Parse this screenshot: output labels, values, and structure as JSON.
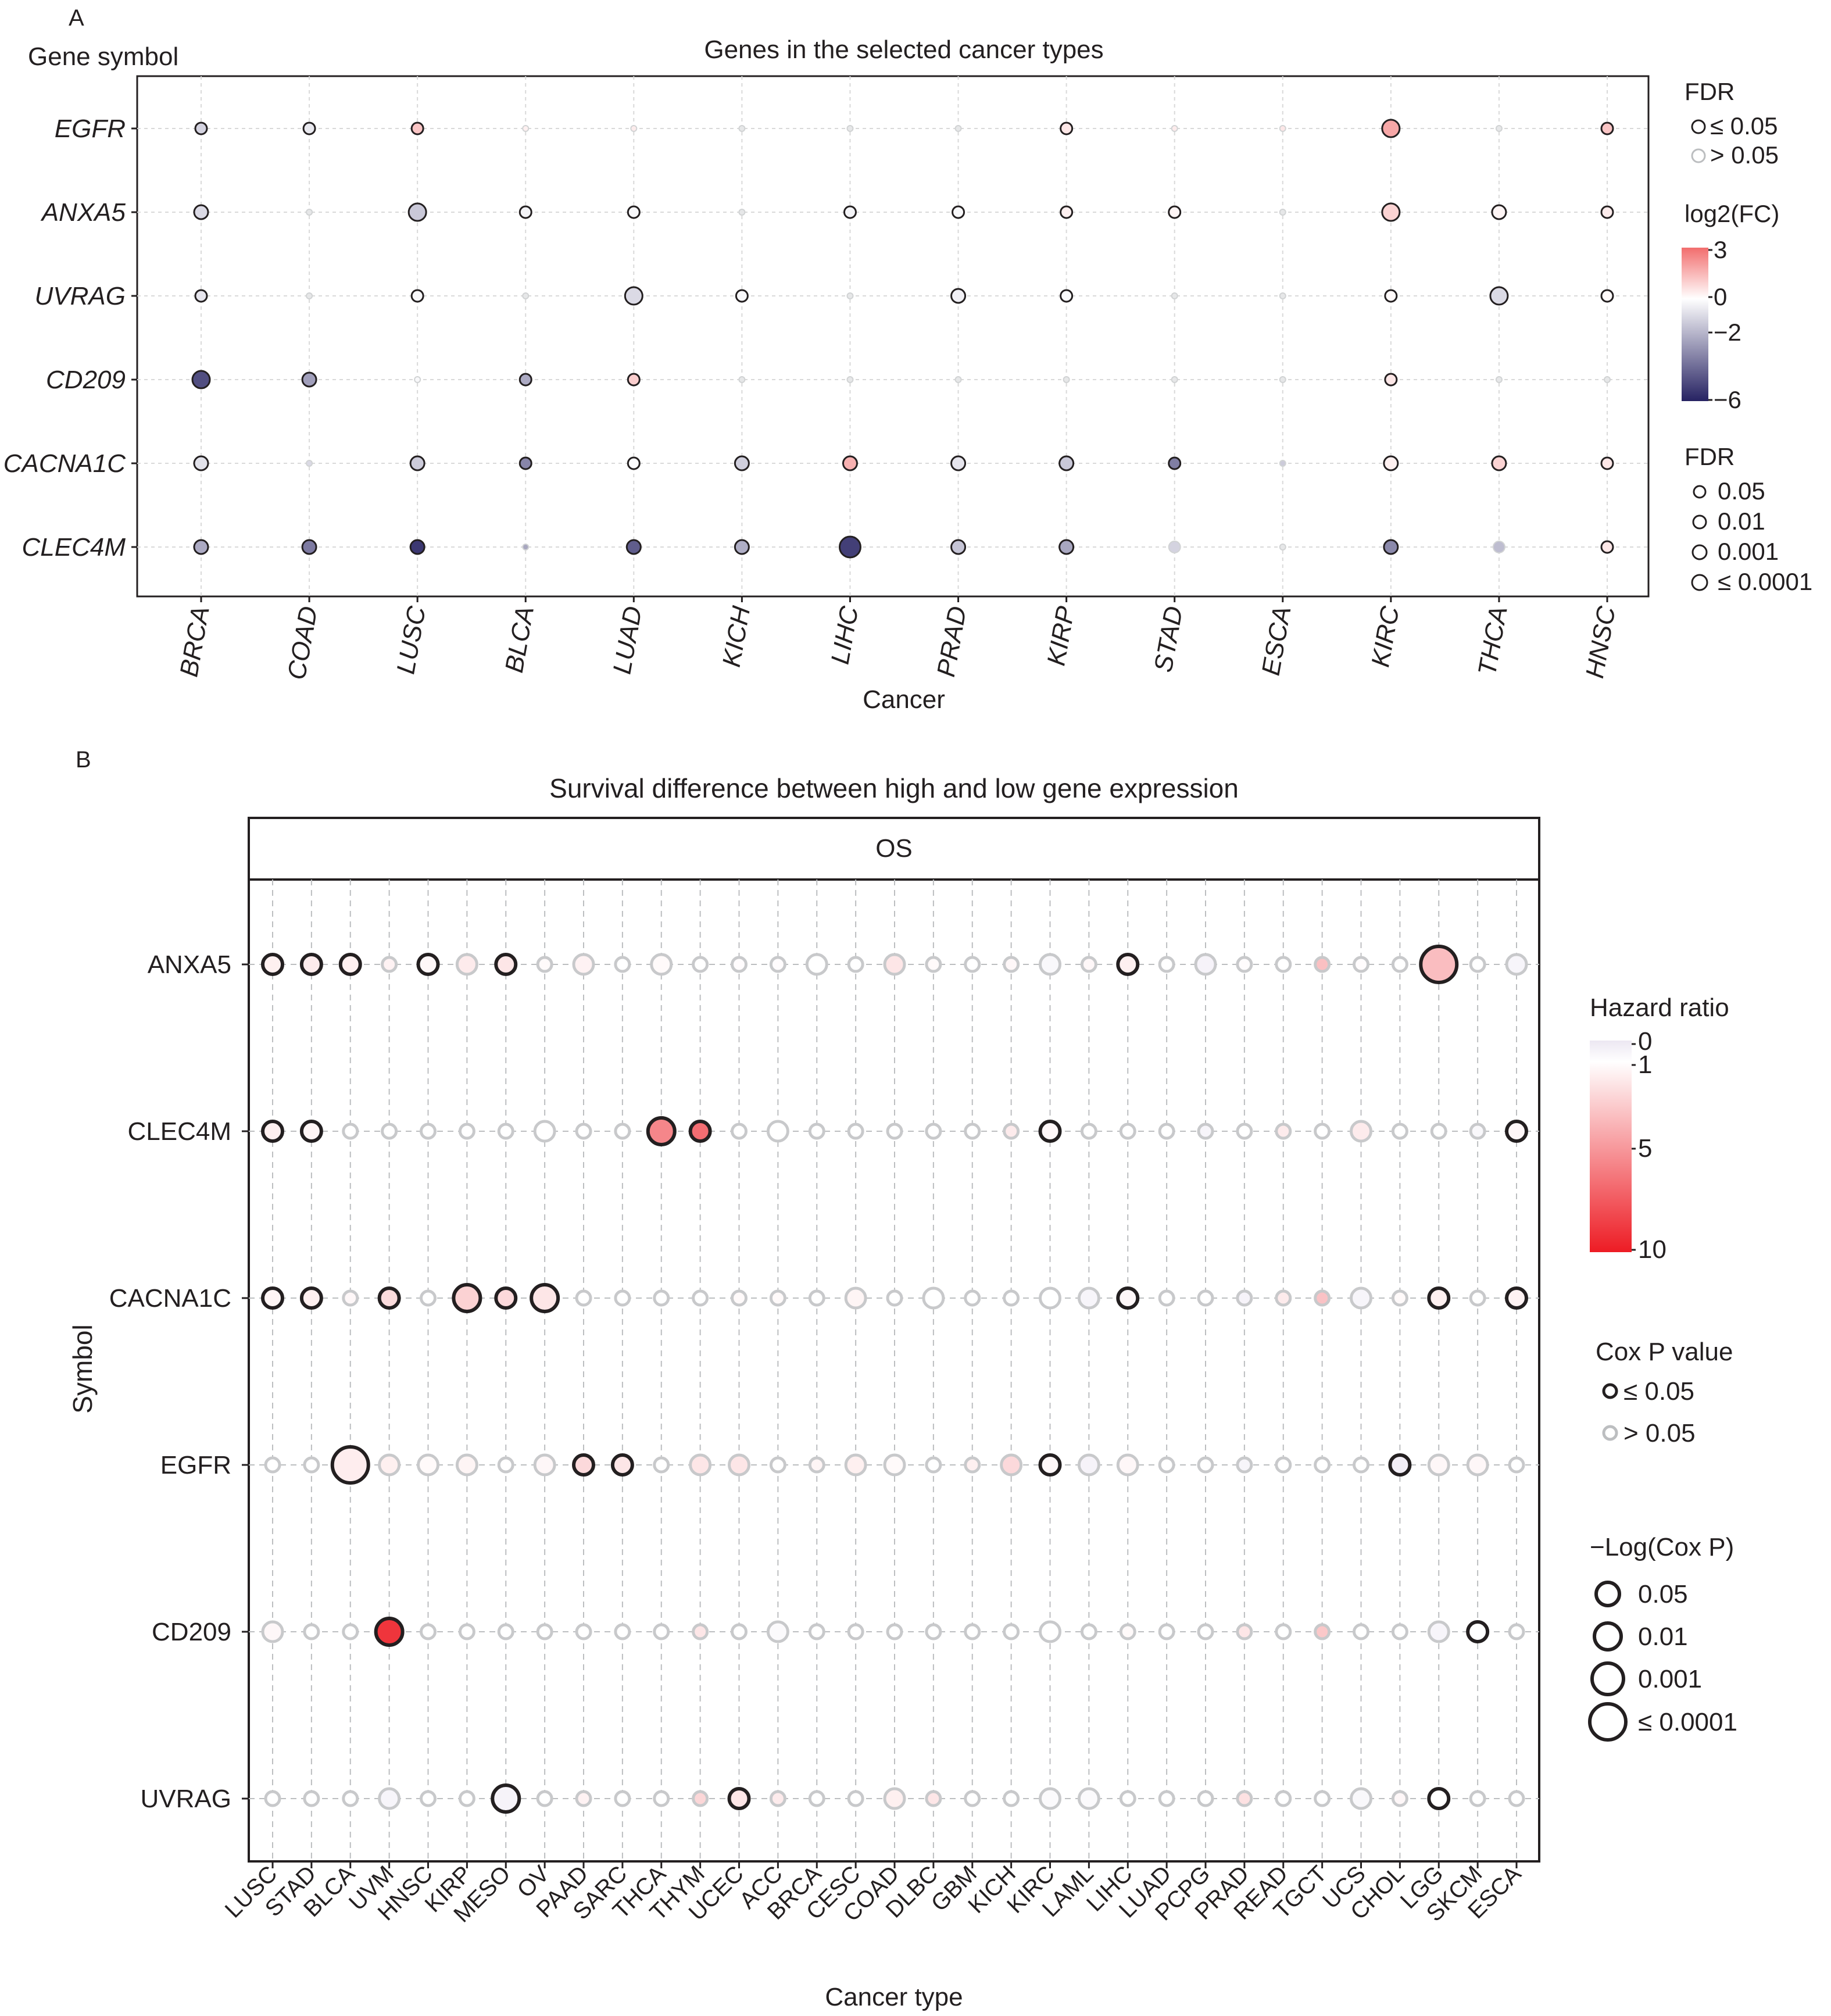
{
  "chart_data": [
    {
      "panel_label": "A",
      "type": "scatter",
      "title": "Genes in the selected cancer types",
      "ylabel": "Gene symbol",
      "xlabel": "Cancer",
      "categories_x": [
        "BRCA",
        "COAD",
        "LUSC",
        "BLCA",
        "LUAD",
        "KICH",
        "LIHC",
        "PRAD",
        "KIRP",
        "STAD",
        "ESCA",
        "KIRC",
        "THCA",
        "HNSC"
      ],
      "categories_y": [
        "EGFR",
        "ANXA5",
        "UVRAG",
        "CD209",
        "CACNA1C",
        "CLEC4M"
      ],
      "color_legend": {
        "title": "log2(FC)",
        "ticks": [
          "3",
          "0",
          "−2",
          "−6"
        ],
        "low": "#262262",
        "mid": "#ffffff",
        "high": "#f26d6d",
        "range": [
          -6,
          3
        ]
      },
      "fdr_color_legend": {
        "title": "FDR",
        "items": [
          "≤ 0.05",
          "> 0.05"
        ]
      },
      "fdr_size_legend": {
        "title": "FDR",
        "items": [
          "0.05",
          "0.01",
          "0.001",
          "≤ 0.0001"
        ]
      },
      "grid": true,
      "series": [
        {
          "gene": "EGFR",
          "log2fc": [
            -1.2,
            -0.6,
            1.2,
            0.3,
            0.4,
            0.0,
            0.0,
            0.0,
            0.5,
            0.4,
            0.5,
            1.8,
            0.0,
            1.2
          ],
          "fdr_sig": [
            1,
            1,
            1,
            0,
            0,
            0,
            0,
            0,
            1,
            0,
            0,
            1,
            0,
            1
          ],
          "size_rank": [
            1,
            1,
            1,
            0,
            0,
            0,
            0,
            0,
            1,
            0,
            0,
            3,
            0,
            1
          ]
        },
        {
          "gene": "ANXA5",
          "log2fc": [
            -1.0,
            0.0,
            -1.5,
            -0.3,
            -0.2,
            0.0,
            -0.3,
            -0.2,
            0.3,
            0.2,
            0.0,
            0.9,
            0.2,
            0.4
          ],
          "fdr_sig": [
            1,
            0,
            1,
            1,
            1,
            0,
            1,
            1,
            1,
            1,
            0,
            1,
            1,
            1
          ],
          "size_rank": [
            2,
            0,
            3,
            1,
            1,
            0,
            1,
            1,
            1,
            1,
            0,
            3,
            2,
            1
          ]
        },
        {
          "gene": "UVRAG",
          "log2fc": [
            -0.7,
            0.0,
            -0.2,
            0.0,
            -1.0,
            -0.2,
            0.0,
            -0.4,
            -0.1,
            0.0,
            0.0,
            0.1,
            -1.0,
            0.1
          ],
          "fdr_sig": [
            1,
            0,
            1,
            0,
            1,
            1,
            0,
            1,
            1,
            0,
            0,
            1,
            1,
            1
          ],
          "size_rank": [
            1,
            0,
            1,
            0,
            3,
            1,
            0,
            2,
            1,
            0,
            0,
            1,
            3,
            1
          ]
        },
        {
          "gene": "CD209",
          "log2fc": [
            -4.8,
            -2.6,
            -0.2,
            -2.3,
            1.0,
            0.0,
            0.0,
            0.0,
            0.0,
            0.0,
            0.0,
            0.5,
            0.0,
            0.0
          ],
          "fdr_sig": [
            1,
            1,
            0,
            1,
            1,
            0,
            0,
            0,
            0,
            0,
            0,
            1,
            0,
            0
          ],
          "size_rank": [
            3,
            2,
            0,
            1,
            1,
            0,
            0,
            0,
            0,
            0,
            0,
            1,
            0,
            0
          ]
        },
        {
          "gene": "CACNA1C",
          "log2fc": [
            -0.8,
            -1.0,
            -1.4,
            -3.3,
            -0.1,
            -1.3,
            1.6,
            -0.7,
            -1.5,
            -3.5,
            -1.4,
            0.3,
            0.9,
            0.5
          ],
          "fdr_sig": [
            1,
            0,
            1,
            1,
            1,
            1,
            1,
            1,
            1,
            1,
            0,
            1,
            1,
            1
          ],
          "size_rank": [
            2,
            0,
            2,
            1,
            1,
            2,
            2,
            2,
            2,
            1,
            0,
            2,
            2,
            1
          ]
        },
        {
          "gene": "CLEC4M",
          "log2fc": [
            -2.3,
            -3.6,
            -5.4,
            -2.4,
            -4.4,
            -2.2,
            -5.2,
            -1.6,
            -2.4,
            -1.2,
            0.0,
            -3.2,
            -1.8,
            0.5
          ],
          "fdr_sig": [
            1,
            1,
            1,
            0,
            1,
            1,
            1,
            1,
            1,
            0,
            0,
            1,
            0,
            1
          ],
          "size_rank": [
            2,
            2,
            2,
            0,
            2,
            2,
            4,
            2,
            2,
            1,
            0,
            2,
            1,
            1
          ]
        }
      ]
    },
    {
      "panel_label": "B",
      "type": "scatter",
      "title": "Survival difference between high and low gene expression",
      "facet": "OS",
      "ylabel": "Symbol",
      "xlabel": "Cancer type",
      "categories_x": [
        "LUSC",
        "STAD",
        "BLCA",
        "UVM",
        "HNSC",
        "KIRP",
        "MESO",
        "OV",
        "PAAD",
        "SARC",
        "THCA",
        "THYM",
        "UCEC",
        "ACC",
        "BRCA",
        "CESC",
        "COAD",
        "DLBC",
        "GBM",
        "KICH",
        "KIRC",
        "LAML",
        "LIHC",
        "LUAD",
        "PCPG",
        "PRAD",
        "READ",
        "TGCT",
        "UCS",
        "CHOL",
        "LGG",
        "SKCM",
        "ESCA"
      ],
      "categories_y": [
        "ANXA5",
        "CLEC4M",
        "CACNA1C",
        "EGFR",
        "CD209",
        "UVRAG"
      ],
      "color_legend": {
        "title": "Hazard ratio",
        "ticks": [
          "0",
          "1",
          "5",
          "10"
        ],
        "low": "#ece7f2",
        "mid": "#ffffff",
        "high": "#ed1c24",
        "range": [
          0,
          10
        ]
      },
      "pvalue_legend": {
        "title": "Cox P value",
        "items": [
          "≤ 0.05",
          "> 0.05"
        ]
      },
      "size_legend": {
        "title": "−Log(Cox P)",
        "items": [
          "0.05",
          "0.01",
          "0.001",
          "≤  0.0001"
        ]
      },
      "grid": true,
      "series": [
        {
          "gene": "ANXA5",
          "hr": [
            1.6,
            1.8,
            1.6,
            1.5,
            1.3,
            1.8,
            2.0,
            1.2,
            1.5,
            1.0,
            1.2,
            1.0,
            1.1,
            1.1,
            1.0,
            1.0,
            2.0,
            1.2,
            1.0,
            1.3,
            0.7,
            1.3,
            1.6,
            1.0,
            0.5,
            1.1,
            1.0,
            3.5,
            1.1,
            1.0,
            3.6,
            1.0,
            0.6
          ],
          "sig": [
            1,
            1,
            1,
            0,
            1,
            0,
            1,
            0,
            0,
            0,
            0,
            0,
            0,
            0,
            0,
            0,
            0,
            0,
            0,
            0,
            0,
            0,
            1,
            0,
            0,
            0,
            0,
            0,
            0,
            0,
            1,
            0,
            0
          ],
          "size": [
            2,
            2,
            2,
            1,
            2,
            2,
            2,
            1,
            2,
            1,
            2,
            1,
            1,
            1,
            2,
            1,
            2,
            1,
            1,
            1,
            2,
            1,
            2,
            1,
            2,
            1,
            1,
            1,
            1,
            1,
            4,
            1,
            2
          ]
        },
        {
          "gene": "CLEC4M",
          "hr": [
            1.6,
            1.4,
            1.0,
            1.0,
            1.0,
            1.0,
            1.0,
            1.0,
            1.0,
            1.0,
            5.8,
            6.8,
            1.0,
            1.0,
            1.0,
            1.0,
            1.0,
            1.0,
            1.0,
            1.8,
            1.3,
            1.0,
            1.0,
            1.0,
            0.6,
            1.0,
            1.8,
            1.0,
            1.8,
            1.0,
            1.0,
            0.7,
            1.3
          ],
          "sig": [
            1,
            1,
            0,
            0,
            0,
            0,
            0,
            0,
            0,
            0,
            1,
            1,
            0,
            0,
            0,
            0,
            0,
            0,
            0,
            0,
            1,
            0,
            0,
            0,
            0,
            0,
            0,
            0,
            0,
            0,
            0,
            0,
            1
          ],
          "size": [
            2,
            2,
            1,
            1,
            1,
            1,
            1,
            2,
            1,
            1,
            3,
            2,
            1,
            2,
            1,
            1,
            1,
            1,
            1,
            1,
            2,
            1,
            1,
            1,
            1,
            1,
            1,
            1,
            2,
            1,
            1,
            1,
            2
          ]
        },
        {
          "gene": "CACNA1C",
          "hr": [
            1.4,
            1.6,
            1.3,
            2.4,
            1.0,
            2.8,
            2.5,
            2.0,
            1.0,
            1.0,
            1.0,
            1.0,
            1.2,
            1.2,
            1.0,
            1.4,
            1.0,
            1.0,
            1.0,
            1.0,
            1.0,
            0.6,
            1.3,
            1.0,
            1.0,
            0.5,
            1.8,
            3.4,
            0.6,
            1.2,
            1.6,
            1.0,
            1.5
          ],
          "sig": [
            1,
            1,
            0,
            1,
            0,
            1,
            1,
            1,
            0,
            0,
            0,
            0,
            0,
            0,
            0,
            0,
            0,
            0,
            0,
            0,
            0,
            0,
            1,
            0,
            0,
            0,
            0,
            0,
            0,
            0,
            1,
            0,
            1
          ],
          "size": [
            2,
            2,
            1,
            2,
            1,
            3,
            2,
            3,
            1,
            1,
            1,
            1,
            1,
            1,
            1,
            2,
            1,
            2,
            1,
            1,
            2,
            2,
            2,
            1,
            1,
            1,
            1,
            1,
            2,
            1,
            2,
            1,
            2
          ]
        },
        {
          "gene": "EGFR",
          "hr": [
            1.0,
            1.0,
            1.7,
            1.6,
            1.2,
            1.4,
            1.0,
            1.3,
            2.5,
            2.0,
            1.0,
            2.0,
            2.0,
            1.0,
            1.4,
            1.6,
            1.2,
            1.0,
            1.6,
            2.5,
            1.3,
            0.5,
            1.3,
            1.0,
            1.0,
            0.6,
            1.0,
            1.0,
            1.0,
            0.3,
            1.3,
            1.3,
            1.0
          ],
          "sig": [
            0,
            0,
            1,
            0,
            0,
            0,
            0,
            0,
            1,
            1,
            0,
            0,
            0,
            0,
            0,
            0,
            0,
            0,
            0,
            0,
            1,
            0,
            0,
            0,
            0,
            0,
            0,
            0,
            0,
            1,
            0,
            0,
            0
          ],
          "size": [
            1,
            1,
            4,
            2,
            2,
            2,
            1,
            2,
            2,
            2,
            1,
            2,
            2,
            1,
            1,
            2,
            2,
            1,
            1,
            2,
            2,
            2,
            2,
            1,
            1,
            1,
            1,
            1,
            1,
            2,
            2,
            2,
            1
          ]
        },
        {
          "gene": "CD209",
          "hr": [
            1.3,
            1.0,
            1.0,
            9.0,
            1.0,
            1.0,
            1.0,
            1.0,
            1.0,
            1.0,
            1.0,
            2.0,
            1.0,
            0.8,
            1.0,
            1.0,
            1.0,
            1.0,
            1.0,
            1.0,
            1.0,
            1.0,
            1.2,
            1.0,
            1.0,
            2.0,
            1.0,
            3.2,
            1.0,
            1.0,
            0.6,
            1.0,
            1.0
          ],
          "sig": [
            0,
            0,
            0,
            1,
            0,
            0,
            0,
            0,
            0,
            0,
            0,
            0,
            0,
            0,
            0,
            0,
            0,
            0,
            0,
            0,
            0,
            0,
            0,
            0,
            0,
            0,
            0,
            0,
            0,
            0,
            0,
            1,
            0
          ],
          "size": [
            2,
            1,
            1,
            3,
            1,
            1,
            1,
            1,
            1,
            1,
            1,
            1,
            1,
            2,
            1,
            1,
            1,
            1,
            1,
            1,
            2,
            1,
            1,
            1,
            1,
            1,
            1,
            1,
            1,
            1,
            2,
            2,
            1
          ]
        },
        {
          "gene": "UVRAG",
          "hr": [
            1.0,
            1.0,
            1.0,
            0.6,
            1.0,
            1.0,
            0.5,
            1.0,
            1.5,
            1.0,
            1.0,
            2.6,
            2.0,
            1.8,
            1.0,
            1.0,
            1.6,
            2.0,
            1.0,
            1.0,
            0.8,
            0.8,
            1.0,
            1.0,
            1.0,
            2.2,
            1.0,
            1.0,
            0.7,
            1.3,
            1.0,
            1.0,
            1.0
          ],
          "sig": [
            0,
            0,
            0,
            0,
            0,
            0,
            1,
            0,
            0,
            0,
            0,
            0,
            1,
            0,
            0,
            0,
            0,
            0,
            0,
            0,
            0,
            0,
            0,
            0,
            0,
            0,
            0,
            0,
            0,
            0,
            1,
            0,
            0
          ],
          "size": [
            1,
            1,
            1,
            2,
            1,
            1,
            3,
            1,
            1,
            1,
            1,
            1,
            2,
            1,
            1,
            1,
            2,
            1,
            1,
            1,
            2,
            2,
            1,
            1,
            1,
            1,
            1,
            1,
            2,
            1,
            2,
            1,
            1
          ]
        }
      ]
    }
  ]
}
